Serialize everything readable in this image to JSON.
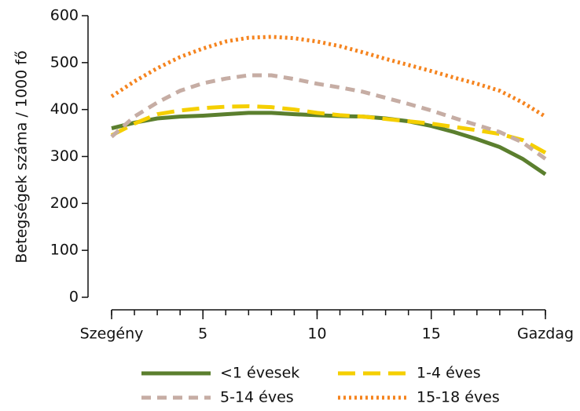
{
  "chart_data": {
    "type": "line",
    "ylabel": "Betegségek száma / 1000 fő",
    "x": [
      1,
      2,
      3,
      4,
      5,
      6,
      7,
      8,
      9,
      10,
      11,
      12,
      13,
      14,
      15,
      16,
      17,
      18,
      19,
      20
    ],
    "xlim": [
      1,
      20
    ],
    "xticks": [
      {
        "value": 1,
        "label": "Szegény"
      },
      5,
      10,
      15,
      {
        "value": 20,
        "label": "Gazdag"
      }
    ],
    "ylim": [
      0,
      600
    ],
    "yticks": [
      0,
      100,
      200,
      300,
      400,
      500,
      600
    ],
    "legend": "bottom",
    "series": [
      {
        "name": "<1 évesek",
        "color": "#5b7f2e",
        "style": "solid",
        "values": [
          360,
          372,
          381,
          385,
          387,
          390,
          393,
          393,
          390,
          388,
          386,
          385,
          381,
          375,
          365,
          352,
          337,
          320,
          295,
          262
        ]
      },
      {
        "name": "1-4 éves",
        "color": "#f5cf00",
        "style": "long-dash",
        "values": [
          345,
          370,
          390,
          398,
          403,
          406,
          407,
          405,
          400,
          393,
          388,
          385,
          380,
          375,
          370,
          363,
          356,
          348,
          335,
          308
        ]
      },
      {
        "name": "5-14 éves",
        "color": "#c6ada4",
        "style": "dash",
        "values": [
          342,
          385,
          415,
          440,
          456,
          466,
          473,
          473,
          465,
          455,
          447,
          438,
          425,
          412,
          398,
          382,
          367,
          352,
          330,
          295
        ]
      },
      {
        "name": "15-18 éves",
        "color": "#f5841f",
        "style": "dot",
        "values": [
          428,
          460,
          488,
          512,
          530,
          545,
          553,
          555,
          552,
          545,
          535,
          522,
          508,
          495,
          482,
          468,
          455,
          440,
          415,
          385
        ]
      }
    ]
  }
}
